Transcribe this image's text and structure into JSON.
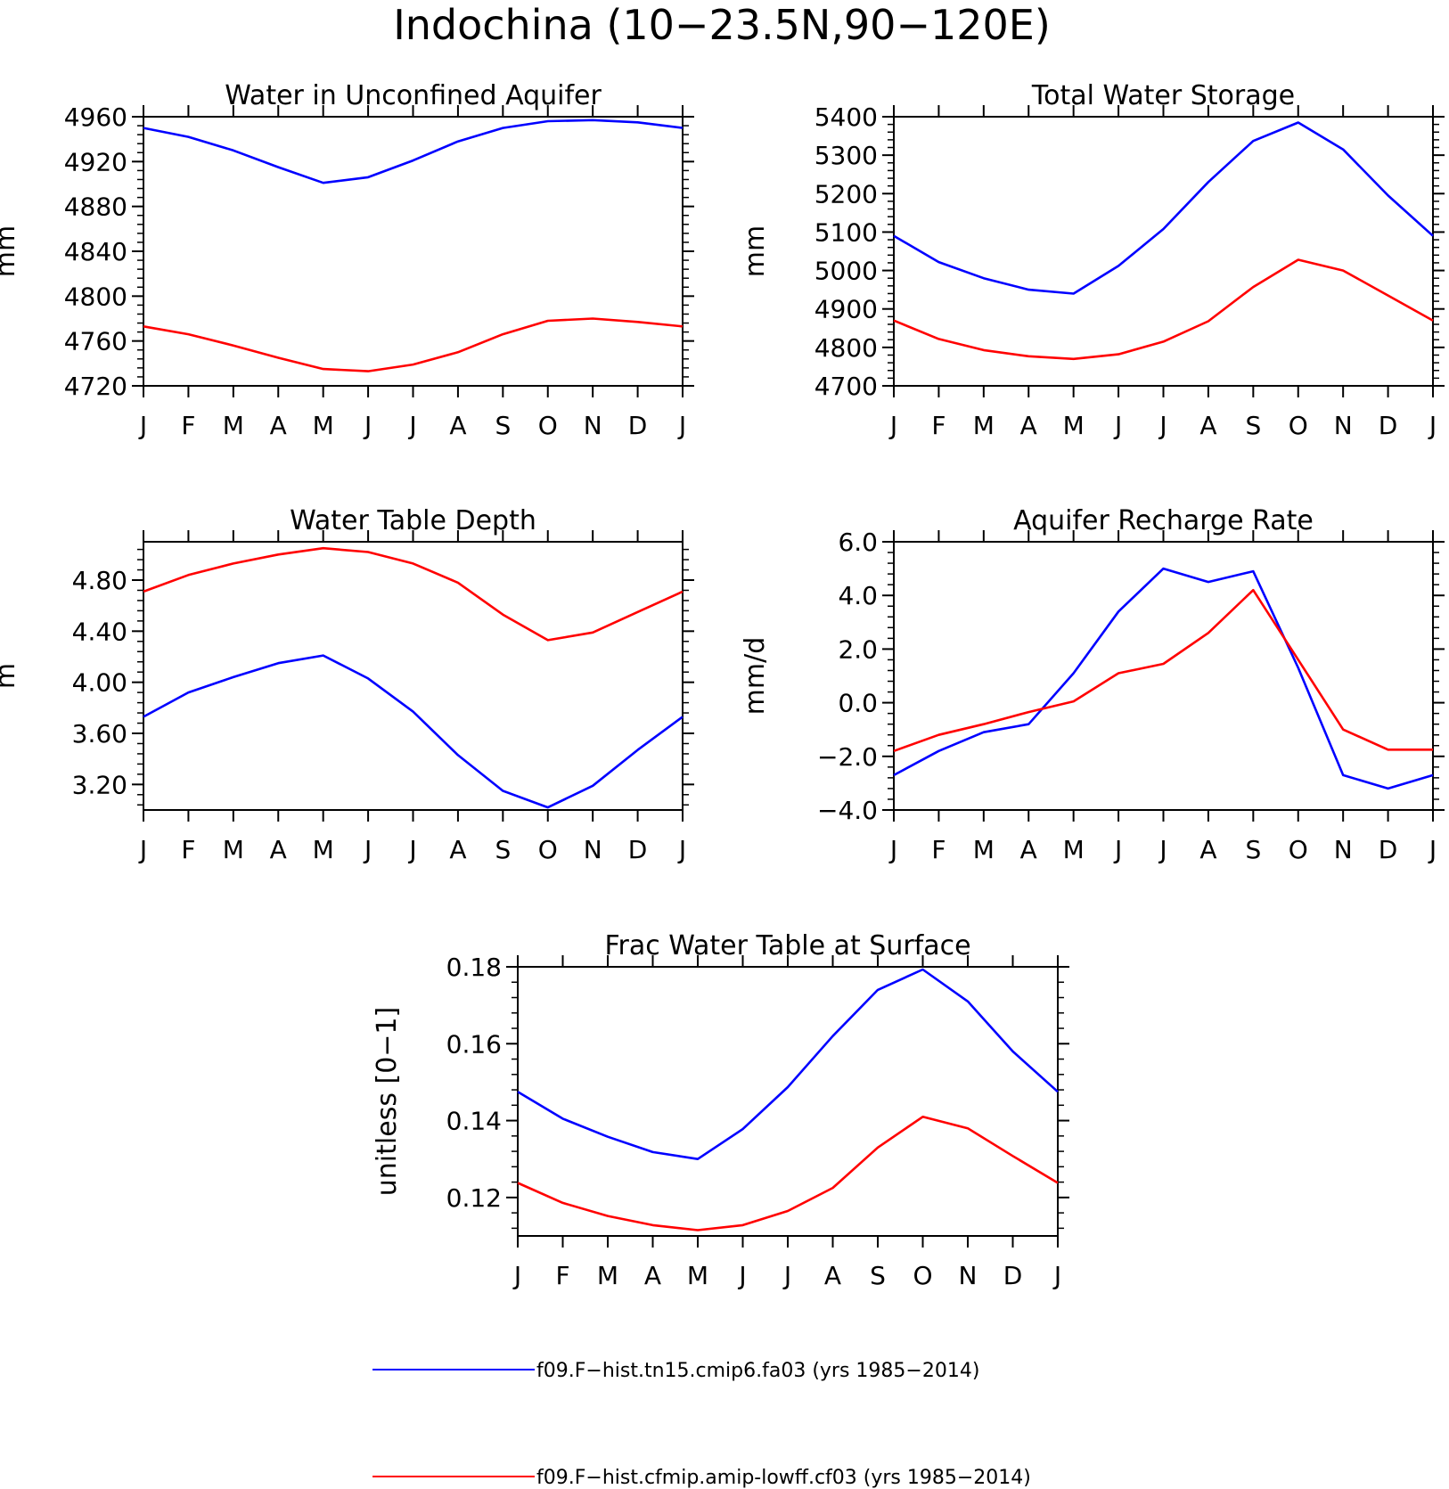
{
  "figure": {
    "title": "Indochina (10−23.5N,90−120E)",
    "colors": {
      "series_1": "#0000ff",
      "series_2": "#ff0000",
      "axes": "#000000"
    }
  },
  "legend": {
    "placement": "bottom-center",
    "items": [
      {
        "label": "f09.F−hist.tn15.cmip6.fa03 (yrs 1985−2014)",
        "color": "#0000ff"
      },
      {
        "label": "f09.F−hist.cfmip.amip-lowff.cf03 (yrs 1985−2014)",
        "color": "#ff0000"
      }
    ]
  },
  "chart_data": [
    {
      "type": "line",
      "title": "Water in Unconfined Aquifer",
      "xlabel": "",
      "ylabel": "mm",
      "x": [
        "J",
        "F",
        "M",
        "A",
        "M",
        "J",
        "J",
        "A",
        "S",
        "O",
        "N",
        "D",
        "J"
      ],
      "ylim": [
        4720,
        4960
      ],
      "yticks": [
        4720,
        4760,
        4800,
        4840,
        4880,
        4920,
        4960
      ],
      "ytick_labels": [
        "4720",
        "4760",
        "4800",
        "4840",
        "4880",
        "4920",
        "4960"
      ],
      "grid": false,
      "series": [
        {
          "color": "#0000ff",
          "values": [
            4950,
            4942,
            4930,
            4915,
            4901,
            4906,
            4921,
            4938,
            4950,
            4956,
            4957,
            4955,
            4950
          ]
        },
        {
          "color": "#ff0000",
          "values": [
            4773,
            4766,
            4756,
            4745,
            4735,
            4733,
            4739,
            4750,
            4766,
            4778,
            4780,
            4777,
            4773
          ]
        }
      ]
    },
    {
      "type": "line",
      "title": "Total Water Storage",
      "xlabel": "",
      "ylabel": "mm",
      "x": [
        "J",
        "F",
        "M",
        "A",
        "M",
        "J",
        "J",
        "A",
        "S",
        "O",
        "N",
        "D",
        "J"
      ],
      "ylim": [
        4700,
        5400
      ],
      "yticks": [
        4700,
        4800,
        4900,
        5000,
        5100,
        5200,
        5300,
        5400
      ],
      "ytick_labels": [
        "4700",
        "4800",
        "4900",
        "5000",
        "5100",
        "5200",
        "5300",
        "5400"
      ],
      "grid": false,
      "series": [
        {
          "color": "#0000ff",
          "values": [
            5090,
            5022,
            4980,
            4950,
            4940,
            5012,
            5108,
            5230,
            5337,
            5385,
            5315,
            5195,
            5090
          ]
        },
        {
          "color": "#ff0000",
          "values": [
            4870,
            4822,
            4793,
            4777,
            4770,
            4782,
            4815,
            4868,
            4957,
            5028,
            5000,
            4935,
            4870
          ]
        }
      ]
    },
    {
      "type": "line",
      "title": "Water Table Depth",
      "xlabel": "",
      "ylabel": "m",
      "x": [
        "J",
        "F",
        "M",
        "A",
        "M",
        "J",
        "J",
        "A",
        "S",
        "O",
        "N",
        "D",
        "J"
      ],
      "ylim": [
        3.0,
        5.1
      ],
      "yticks": [
        3.2,
        3.6,
        4.0,
        4.4,
        4.8
      ],
      "ytick_labels": [
        "3.20",
        "3.60",
        "4.00",
        "4.40",
        "4.80"
      ],
      "grid": false,
      "series": [
        {
          "color": "#0000ff",
          "values": [
            3.73,
            3.92,
            4.04,
            4.15,
            4.21,
            4.03,
            3.77,
            3.43,
            3.15,
            3.02,
            3.19,
            3.47,
            3.73
          ]
        },
        {
          "color": "#ff0000",
          "values": [
            4.71,
            4.84,
            4.93,
            5.0,
            5.05,
            5.02,
            4.93,
            4.78,
            4.53,
            4.33,
            4.39,
            4.55,
            4.71
          ]
        }
      ]
    },
    {
      "type": "line",
      "title": "Aquifer Recharge Rate",
      "xlabel": "",
      "ylabel": "mm/d",
      "x": [
        "J",
        "F",
        "M",
        "A",
        "M",
        "J",
        "J",
        "A",
        "S",
        "O",
        "N",
        "D",
        "J"
      ],
      "ylim": [
        -4.0,
        6.0
      ],
      "yticks": [
        -4.0,
        -2.0,
        0.0,
        2.0,
        4.0,
        6.0
      ],
      "ytick_labels": [
        "−4.0",
        "−2.0",
        "0.0",
        "2.0",
        "4.0",
        "6.0"
      ],
      "grid": false,
      "series": [
        {
          "color": "#0000ff",
          "values": [
            -2.7,
            -1.8,
            -1.1,
            -0.8,
            1.1,
            3.4,
            5.0,
            4.5,
            4.9,
            1.3,
            -2.7,
            -3.2,
            -2.7
          ]
        },
        {
          "color": "#ff0000",
          "values": [
            -1.8,
            -1.2,
            -0.8,
            -0.35,
            0.05,
            1.1,
            1.45,
            2.6,
            4.2,
            1.6,
            -1.0,
            -1.75,
            -1.75
          ]
        }
      ]
    },
    {
      "type": "line",
      "title": "Frac Water Table at Surface",
      "xlabel": "",
      "ylabel": "unitless [0−1]",
      "x": [
        "J",
        "F",
        "M",
        "A",
        "M",
        "J",
        "J",
        "A",
        "S",
        "O",
        "N",
        "D",
        "J"
      ],
      "ylim": [
        0.11,
        0.18
      ],
      "yticks": [
        0.12,
        0.14,
        0.16,
        0.18
      ],
      "ytick_labels": [
        "0.12",
        "0.14",
        "0.16",
        "0.18"
      ],
      "grid": false,
      "series": [
        {
          "color": "#0000ff",
          "values": [
            0.1475,
            0.1405,
            0.1358,
            0.1318,
            0.13,
            0.1378,
            0.1487,
            0.162,
            0.174,
            0.1793,
            0.171,
            0.158,
            0.1475
          ]
        },
        {
          "color": "#ff0000",
          "values": [
            0.1238,
            0.1186,
            0.1152,
            0.1128,
            0.1115,
            0.1128,
            0.1165,
            0.1225,
            0.133,
            0.141,
            0.138,
            0.1308,
            0.1238
          ]
        }
      ]
    }
  ]
}
